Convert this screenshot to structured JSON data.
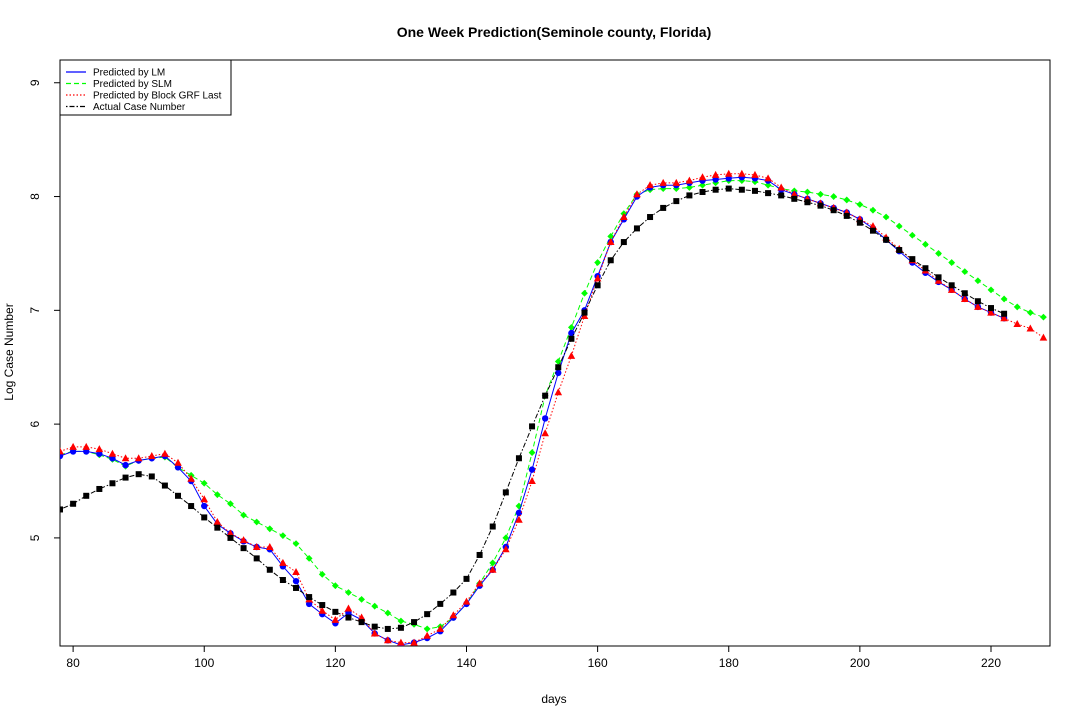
{
  "chart_data": {
    "type": "scatter",
    "title": "One Week Prediction(Seminole county, Florida)",
    "xlabel": "days",
    "ylabel": "Log Case Number",
    "xlim": [
      78,
      229
    ],
    "ylim": [
      4.05,
      9.2
    ],
    "x_ticks": [
      80,
      100,
      120,
      140,
      160,
      180,
      200,
      220
    ],
    "y_ticks": [
      5,
      6,
      7,
      8,
      9
    ],
    "legend_position": "top-left",
    "legend": [
      {
        "label": "Predicted by LM",
        "color": "#0000ff",
        "line": "solid"
      },
      {
        "label": "Predicted by SLM",
        "color": "#00ff00",
        "line": "dashed"
      },
      {
        "label": "Predicted by Block GRF Last",
        "color": "#ff0000",
        "line": "dotted"
      },
      {
        "label": "Actual Case Number",
        "color": "#000000",
        "line": "dotdash"
      }
    ],
    "series": [
      {
        "name": "Predicted by LM",
        "color": "#0000ff",
        "marker": "circle",
        "points": [
          [
            78,
            5.72
          ],
          [
            80,
            5.76
          ],
          [
            82,
            5.76
          ],
          [
            84,
            5.74
          ],
          [
            86,
            5.7
          ],
          [
            88,
            5.64
          ],
          [
            90,
            5.68
          ],
          [
            92,
            5.7
          ],
          [
            94,
            5.72
          ],
          [
            96,
            5.62
          ],
          [
            98,
            5.5
          ],
          [
            100,
            5.28
          ],
          [
            102,
            5.12
          ],
          [
            104,
            5.04
          ],
          [
            106,
            4.97
          ],
          [
            108,
            4.92
          ],
          [
            110,
            4.9
          ],
          [
            112,
            4.75
          ],
          [
            114,
            4.62
          ],
          [
            116,
            4.42
          ],
          [
            118,
            4.33
          ],
          [
            120,
            4.25
          ],
          [
            122,
            4.34
          ],
          [
            124,
            4.28
          ],
          [
            126,
            4.16
          ],
          [
            128,
            4.1
          ],
          [
            130,
            4.06
          ],
          [
            132,
            4.08
          ],
          [
            134,
            4.12
          ],
          [
            136,
            4.18
          ],
          [
            138,
            4.3
          ],
          [
            140,
            4.42
          ],
          [
            142,
            4.58
          ],
          [
            144,
            4.72
          ],
          [
            146,
            4.92
          ],
          [
            148,
            5.22
          ],
          [
            150,
            5.6
          ],
          [
            152,
            6.05
          ],
          [
            154,
            6.45
          ],
          [
            156,
            6.8
          ],
          [
            158,
            7.0
          ],
          [
            160,
            7.3
          ],
          [
            162,
            7.6
          ],
          [
            164,
            7.8
          ],
          [
            166,
            8.0
          ],
          [
            168,
            8.08
          ],
          [
            170,
            8.1
          ],
          [
            172,
            8.1
          ],
          [
            174,
            8.12
          ],
          [
            176,
            8.14
          ],
          [
            178,
            8.15
          ],
          [
            180,
            8.16
          ],
          [
            182,
            8.17
          ],
          [
            184,
            8.16
          ],
          [
            186,
            8.14
          ],
          [
            188,
            8.06
          ],
          [
            190,
            8.02
          ],
          [
            192,
            7.98
          ],
          [
            194,
            7.94
          ],
          [
            196,
            7.9
          ],
          [
            198,
            7.86
          ],
          [
            200,
            7.8
          ],
          [
            202,
            7.72
          ],
          [
            204,
            7.62
          ],
          [
            206,
            7.52
          ],
          [
            208,
            7.42
          ],
          [
            210,
            7.33
          ],
          [
            212,
            7.25
          ],
          [
            214,
            7.18
          ],
          [
            216,
            7.1
          ],
          [
            218,
            7.03
          ],
          [
            220,
            6.98
          ],
          [
            222,
            6.93
          ]
        ]
      },
      {
        "name": "Predicted by SLM",
        "color": "#00ff00",
        "marker": "diamond",
        "points": [
          [
            78,
            5.73
          ],
          [
            80,
            5.76
          ],
          [
            82,
            5.76
          ],
          [
            84,
            5.73
          ],
          [
            86,
            5.69
          ],
          [
            88,
            5.63
          ],
          [
            90,
            5.68
          ],
          [
            92,
            5.7
          ],
          [
            94,
            5.71
          ],
          [
            96,
            5.62
          ],
          [
            98,
            5.55
          ],
          [
            100,
            5.48
          ],
          [
            102,
            5.38
          ],
          [
            104,
            5.3
          ],
          [
            106,
            5.2
          ],
          [
            108,
            5.14
          ],
          [
            110,
            5.08
          ],
          [
            112,
            5.02
          ],
          [
            114,
            4.95
          ],
          [
            116,
            4.82
          ],
          [
            118,
            4.68
          ],
          [
            120,
            4.58
          ],
          [
            122,
            4.52
          ],
          [
            124,
            4.46
          ],
          [
            126,
            4.4
          ],
          [
            128,
            4.34
          ],
          [
            130,
            4.27
          ],
          [
            132,
            4.24
          ],
          [
            134,
            4.2
          ],
          [
            136,
            4.22
          ],
          [
            138,
            4.3
          ],
          [
            140,
            4.42
          ],
          [
            142,
            4.6
          ],
          [
            144,
            4.78
          ],
          [
            146,
            5.0
          ],
          [
            148,
            5.28
          ],
          [
            150,
            5.75
          ],
          [
            152,
            6.25
          ],
          [
            154,
            6.55
          ],
          [
            156,
            6.85
          ],
          [
            158,
            7.15
          ],
          [
            160,
            7.42
          ],
          [
            162,
            7.65
          ],
          [
            164,
            7.85
          ],
          [
            166,
            8.02
          ],
          [
            168,
            8.06
          ],
          [
            170,
            8.07
          ],
          [
            172,
            8.07
          ],
          [
            174,
            8.08
          ],
          [
            176,
            8.1
          ],
          [
            178,
            8.12
          ],
          [
            180,
            8.14
          ],
          [
            182,
            8.14
          ],
          [
            184,
            8.13
          ],
          [
            186,
            8.1
          ],
          [
            188,
            8.07
          ],
          [
            190,
            8.05
          ],
          [
            192,
            8.04
          ],
          [
            194,
            8.02
          ],
          [
            196,
            8.0
          ],
          [
            198,
            7.97
          ],
          [
            200,
            7.93
          ],
          [
            202,
            7.88
          ],
          [
            204,
            7.82
          ],
          [
            206,
            7.74
          ],
          [
            208,
            7.66
          ],
          [
            210,
            7.58
          ],
          [
            212,
            7.5
          ],
          [
            214,
            7.42
          ],
          [
            216,
            7.34
          ],
          [
            218,
            7.26
          ],
          [
            220,
            7.18
          ],
          [
            222,
            7.1
          ],
          [
            224,
            7.03
          ],
          [
            226,
            6.98
          ],
          [
            228,
            6.94
          ]
        ]
      },
      {
        "name": "Predicted by Block GRF Last",
        "color": "#ff0000",
        "marker": "triangle",
        "points": [
          [
            78,
            5.76
          ],
          [
            80,
            5.8
          ],
          [
            82,
            5.8
          ],
          [
            84,
            5.78
          ],
          [
            86,
            5.74
          ],
          [
            88,
            5.7
          ],
          [
            90,
            5.7
          ],
          [
            92,
            5.72
          ],
          [
            94,
            5.74
          ],
          [
            96,
            5.66
          ],
          [
            98,
            5.52
          ],
          [
            100,
            5.34
          ],
          [
            102,
            5.14
          ],
          [
            104,
            5.04
          ],
          [
            106,
            4.98
          ],
          [
            108,
            4.92
          ],
          [
            110,
            4.92
          ],
          [
            112,
            4.78
          ],
          [
            114,
            4.7
          ],
          [
            116,
            4.46
          ],
          [
            118,
            4.36
          ],
          [
            120,
            4.28
          ],
          [
            122,
            4.38
          ],
          [
            124,
            4.3
          ],
          [
            126,
            4.16
          ],
          [
            128,
            4.1
          ],
          [
            130,
            4.08
          ],
          [
            132,
            4.08
          ],
          [
            134,
            4.14
          ],
          [
            136,
            4.2
          ],
          [
            138,
            4.32
          ],
          [
            140,
            4.44
          ],
          [
            142,
            4.6
          ],
          [
            144,
            4.72
          ],
          [
            146,
            4.9
          ],
          [
            148,
            5.16
          ],
          [
            150,
            5.5
          ],
          [
            152,
            5.92
          ],
          [
            154,
            6.28
          ],
          [
            156,
            6.6
          ],
          [
            158,
            6.95
          ],
          [
            160,
            7.28
          ],
          [
            162,
            7.6
          ],
          [
            164,
            7.82
          ],
          [
            166,
            8.02
          ],
          [
            168,
            8.1
          ],
          [
            170,
            8.12
          ],
          [
            172,
            8.12
          ],
          [
            174,
            8.14
          ],
          [
            176,
            8.17
          ],
          [
            178,
            8.19
          ],
          [
            180,
            8.2
          ],
          [
            182,
            8.2
          ],
          [
            184,
            8.19
          ],
          [
            186,
            8.16
          ],
          [
            188,
            8.08
          ],
          [
            190,
            8.02
          ],
          [
            192,
            7.98
          ],
          [
            194,
            7.94
          ],
          [
            196,
            7.9
          ],
          [
            198,
            7.86
          ],
          [
            200,
            7.8
          ],
          [
            202,
            7.74
          ],
          [
            204,
            7.64
          ],
          [
            206,
            7.54
          ],
          [
            208,
            7.44
          ],
          [
            210,
            7.35
          ],
          [
            212,
            7.26
          ],
          [
            214,
            7.18
          ],
          [
            216,
            7.1
          ],
          [
            218,
            7.03
          ],
          [
            220,
            6.98
          ],
          [
            222,
            6.93
          ],
          [
            224,
            6.88
          ],
          [
            226,
            6.84
          ],
          [
            228,
            6.76
          ]
        ]
      },
      {
        "name": "Actual Case Number",
        "color": "#000000",
        "marker": "square",
        "points": [
          [
            78,
            5.25
          ],
          [
            80,
            5.3
          ],
          [
            82,
            5.37
          ],
          [
            84,
            5.43
          ],
          [
            86,
            5.48
          ],
          [
            88,
            5.53
          ],
          [
            90,
            5.56
          ],
          [
            92,
            5.54
          ],
          [
            94,
            5.46
          ],
          [
            96,
            5.37
          ],
          [
            98,
            5.28
          ],
          [
            100,
            5.18
          ],
          [
            102,
            5.09
          ],
          [
            104,
            5.0
          ],
          [
            106,
            4.91
          ],
          [
            108,
            4.82
          ],
          [
            110,
            4.72
          ],
          [
            112,
            4.63
          ],
          [
            114,
            4.56
          ],
          [
            116,
            4.48
          ],
          [
            118,
            4.41
          ],
          [
            120,
            4.35
          ],
          [
            122,
            4.3
          ],
          [
            124,
            4.26
          ],
          [
            126,
            4.22
          ],
          [
            128,
            4.2
          ],
          [
            130,
            4.21
          ],
          [
            132,
            4.26
          ],
          [
            134,
            4.33
          ],
          [
            136,
            4.42
          ],
          [
            138,
            4.52
          ],
          [
            140,
            4.64
          ],
          [
            142,
            4.85
          ],
          [
            144,
            5.1
          ],
          [
            146,
            5.4
          ],
          [
            148,
            5.7
          ],
          [
            150,
            5.98
          ],
          [
            152,
            6.25
          ],
          [
            154,
            6.5
          ],
          [
            156,
            6.75
          ],
          [
            158,
            6.98
          ],
          [
            160,
            7.22
          ],
          [
            162,
            7.44
          ],
          [
            164,
            7.6
          ],
          [
            166,
            7.72
          ],
          [
            168,
            7.82
          ],
          [
            170,
            7.9
          ],
          [
            172,
            7.96
          ],
          [
            174,
            8.01
          ],
          [
            176,
            8.04
          ],
          [
            178,
            8.06
          ],
          [
            180,
            8.07
          ],
          [
            182,
            8.06
          ],
          [
            184,
            8.05
          ],
          [
            186,
            8.03
          ],
          [
            188,
            8.01
          ],
          [
            190,
            7.98
          ],
          [
            192,
            7.95
          ],
          [
            194,
            7.92
          ],
          [
            196,
            7.88
          ],
          [
            198,
            7.83
          ],
          [
            200,
            7.77
          ],
          [
            202,
            7.7
          ],
          [
            204,
            7.62
          ],
          [
            206,
            7.53
          ],
          [
            208,
            7.45
          ],
          [
            210,
            7.37
          ],
          [
            212,
            7.29
          ],
          [
            214,
            7.22
          ],
          [
            216,
            7.15
          ],
          [
            218,
            7.08
          ],
          [
            220,
            7.02
          ],
          [
            222,
            6.97
          ]
        ]
      }
    ]
  }
}
